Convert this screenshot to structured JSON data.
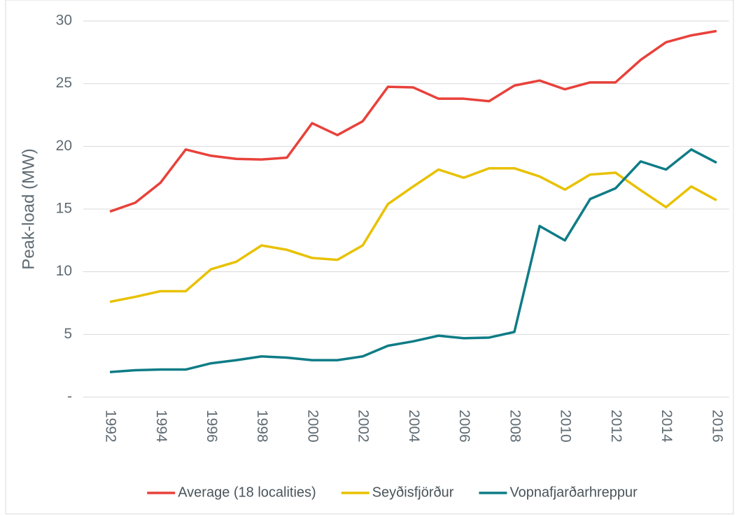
{
  "chart_data": {
    "type": "line",
    "y_label": "Peak-load (MW)",
    "categories": [
      "1992",
      null,
      "1994",
      null,
      "1996",
      null,
      "1998",
      null,
      "2000",
      null,
      "2002",
      null,
      "2004",
      null,
      "2006",
      null,
      "2008",
      null,
      "2010",
      null,
      "2012",
      null,
      "2014",
      null,
      "2016"
    ],
    "series": [
      {
        "name": "Average (18 localities)",
        "color": "#e8413a",
        "values": [
          14.8,
          15.5,
          17.1,
          19.75,
          19.25,
          19.0,
          18.95,
          19.1,
          21.85,
          20.9,
          22.0,
          24.75,
          24.7,
          23.8,
          23.8,
          23.6,
          24.85,
          25.25,
          24.55,
          25.1,
          25.1,
          26.9,
          28.3,
          28.85,
          29.2
        ]
      },
      {
        "name": "Seyðisfjörður",
        "color": "#e8c100",
        "values": [
          7.6,
          8.0,
          8.45,
          8.45,
          10.2,
          10.8,
          12.1,
          11.75,
          11.1,
          10.95,
          12.1,
          15.4,
          16.8,
          18.15,
          17.5,
          18.25,
          18.25,
          17.6,
          16.55,
          17.75,
          17.9,
          16.5,
          15.15,
          16.8,
          15.7
        ]
      },
      {
        "name": "Vopnafjarðarhreppur",
        "color": "#0e7c86",
        "values": [
          2.0,
          2.15,
          2.2,
          2.2,
          2.7,
          2.95,
          3.25,
          3.15,
          2.95,
          2.95,
          3.25,
          4.1,
          4.45,
          4.9,
          4.7,
          4.75,
          5.2,
          13.65,
          12.5,
          15.8,
          16.65,
          18.8,
          18.15,
          19.75,
          18.7
        ]
      }
    ],
    "ylim": [
      0,
      30
    ],
    "yticks": [
      {
        "value": 0,
        "label": "-"
      },
      5,
      10,
      15,
      20,
      25,
      30
    ],
    "grid": true,
    "legend": "bottom"
  }
}
